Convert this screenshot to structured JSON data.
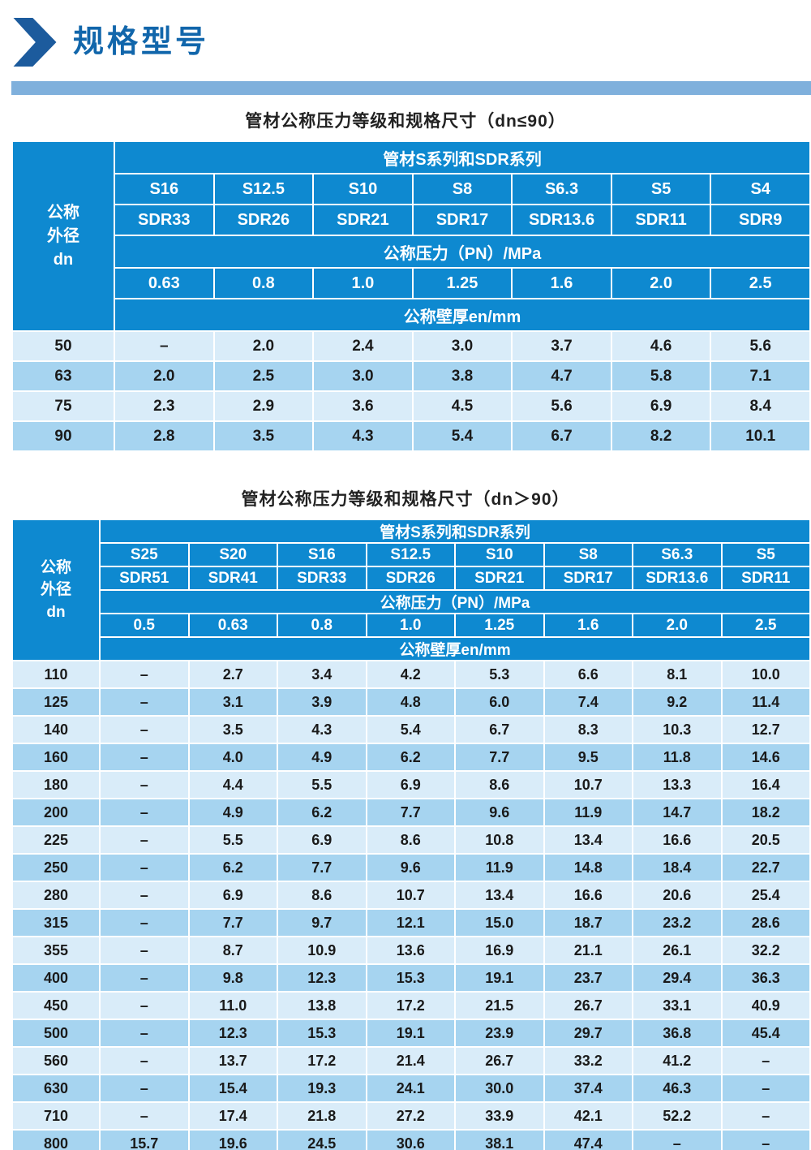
{
  "page": {
    "heading": "规格型号"
  },
  "colors": {
    "heading_text": "#1166ab",
    "chevron": "#1c5b9d",
    "accent_bar": "#7fb0dc",
    "table_header": "#0e89d0",
    "row_light": "#d9ecf9",
    "row_dark": "#a6d4f0",
    "body_text": "#1a1a1a"
  },
  "table1": {
    "title": "管材公称压力等级和规格尺寸（dn≤90）",
    "corner": [
      "公称",
      "外径",
      "dn"
    ],
    "series_header": "管材S系列和SDR系列",
    "s_values": [
      "S16",
      "S12.5",
      "S10",
      "S8",
      "S6.3",
      "S5",
      "S4"
    ],
    "sdr_values": [
      "SDR33",
      "SDR26",
      "SDR21",
      "SDR17",
      "SDR13.6",
      "SDR11",
      "SDR9"
    ],
    "pn_header": "公称压力（PN）/MPa",
    "pn_values": [
      "0.63",
      "0.8",
      "1.0",
      "1.25",
      "1.6",
      "2.0",
      "2.5"
    ],
    "en_header": "公称壁厚en/mm",
    "rows": [
      {
        "dn": "50",
        "values": [
          "–",
          "2.0",
          "2.4",
          "3.0",
          "3.7",
          "4.6",
          "5.6"
        ]
      },
      {
        "dn": "63",
        "values": [
          "2.0",
          "2.5",
          "3.0",
          "3.8",
          "4.7",
          "5.8",
          "7.1"
        ]
      },
      {
        "dn": "75",
        "values": [
          "2.3",
          "2.9",
          "3.6",
          "4.5",
          "5.6",
          "6.9",
          "8.4"
        ]
      },
      {
        "dn": "90",
        "values": [
          "2.8",
          "3.5",
          "4.3",
          "5.4",
          "6.7",
          "8.2",
          "10.1"
        ]
      }
    ]
  },
  "table2": {
    "title": "管材公称压力等级和规格尺寸（dn＞90）",
    "corner": [
      "公称",
      "外径",
      "dn"
    ],
    "series_header": "管材S系列和SDR系列",
    "s_values": [
      "S25",
      "S20",
      "S16",
      "S12.5",
      "S10",
      "S8",
      "S6.3",
      "S5"
    ],
    "sdr_values": [
      "SDR51",
      "SDR41",
      "SDR33",
      "SDR26",
      "SDR21",
      "SDR17",
      "SDR13.6",
      "SDR11"
    ],
    "pn_header": "公称压力（PN）/MPa",
    "pn_values": [
      "0.5",
      "0.63",
      "0.8",
      "1.0",
      "1.25",
      "1.6",
      "2.0",
      "2.5"
    ],
    "en_header": "公称壁厚en/mm",
    "rows": [
      {
        "dn": "110",
        "values": [
          "–",
          "2.7",
          "3.4",
          "4.2",
          "5.3",
          "6.6",
          "8.1",
          "10.0"
        ]
      },
      {
        "dn": "125",
        "values": [
          "–",
          "3.1",
          "3.9",
          "4.8",
          "6.0",
          "7.4",
          "9.2",
          "11.4"
        ]
      },
      {
        "dn": "140",
        "values": [
          "–",
          "3.5",
          "4.3",
          "5.4",
          "6.7",
          "8.3",
          "10.3",
          "12.7"
        ]
      },
      {
        "dn": "160",
        "values": [
          "–",
          "4.0",
          "4.9",
          "6.2",
          "7.7",
          "9.5",
          "11.8",
          "14.6"
        ]
      },
      {
        "dn": "180",
        "values": [
          "–",
          "4.4",
          "5.5",
          "6.9",
          "8.6",
          "10.7",
          "13.3",
          "16.4"
        ]
      },
      {
        "dn": "200",
        "values": [
          "–",
          "4.9",
          "6.2",
          "7.7",
          "9.6",
          "11.9",
          "14.7",
          "18.2"
        ]
      },
      {
        "dn": "225",
        "values": [
          "–",
          "5.5",
          "6.9",
          "8.6",
          "10.8",
          "13.4",
          "16.6",
          "20.5"
        ]
      },
      {
        "dn": "250",
        "values": [
          "–",
          "6.2",
          "7.7",
          "9.6",
          "11.9",
          "14.8",
          "18.4",
          "22.7"
        ]
      },
      {
        "dn": "280",
        "values": [
          "–",
          "6.9",
          "8.6",
          "10.7",
          "13.4",
          "16.6",
          "20.6",
          "25.4"
        ]
      },
      {
        "dn": "315",
        "values": [
          "–",
          "7.7",
          "9.7",
          "12.1",
          "15.0",
          "18.7",
          "23.2",
          "28.6"
        ]
      },
      {
        "dn": "355",
        "values": [
          "–",
          "8.7",
          "10.9",
          "13.6",
          "16.9",
          "21.1",
          "26.1",
          "32.2"
        ]
      },
      {
        "dn": "400",
        "values": [
          "–",
          "9.8",
          "12.3",
          "15.3",
          "19.1",
          "23.7",
          "29.4",
          "36.3"
        ]
      },
      {
        "dn": "450",
        "values": [
          "–",
          "11.0",
          "13.8",
          "17.2",
          "21.5",
          "26.7",
          "33.1",
          "40.9"
        ]
      },
      {
        "dn": "500",
        "values": [
          "–",
          "12.3",
          "15.3",
          "19.1",
          "23.9",
          "29.7",
          "36.8",
          "45.4"
        ]
      },
      {
        "dn": "560",
        "values": [
          "–",
          "13.7",
          "17.2",
          "21.4",
          "26.7",
          "33.2",
          "41.2",
          "–"
        ]
      },
      {
        "dn": "630",
        "values": [
          "–",
          "15.4",
          "19.3",
          "24.1",
          "30.0",
          "37.4",
          "46.3",
          "–"
        ]
      },
      {
        "dn": "710",
        "values": [
          "–",
          "17.4",
          "21.8",
          "27.2",
          "33.9",
          "42.1",
          "52.2",
          "–"
        ]
      },
      {
        "dn": "800",
        "values": [
          "15.7",
          "19.6",
          "24.5",
          "30.6",
          "38.1",
          "47.4",
          "–",
          "–"
        ]
      }
    ]
  }
}
